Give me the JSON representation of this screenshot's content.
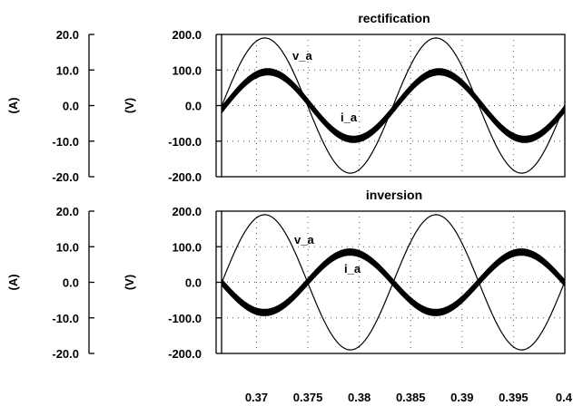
{
  "chart_data": [
    {
      "type": "line",
      "title": "rectification",
      "x_range": [
        0.3666,
        0.4
      ],
      "left_axis": {
        "unit": "(A)",
        "ylim": [
          -20,
          20
        ],
        "ticks": [
          "20.0",
          "10.0",
          "0.0",
          "-10.0",
          "-20.0"
        ]
      },
      "right_axis": {
        "unit": "(V)",
        "ylim": [
          -200,
          200
        ],
        "ticks": [
          "200.0",
          "100.0",
          "0.0",
          "-100.0",
          "-200.0"
        ]
      },
      "grid": true,
      "series": [
        {
          "name": "v_a",
          "axis": "right",
          "waveform": "sine",
          "amplitude": 190,
          "frequency_hz": 60,
          "peak_at": 0.3708
        },
        {
          "name": "i_a",
          "axis": "left",
          "waveform": "sine",
          "amplitude": 9.5,
          "ripple": 0.9,
          "frequency_hz": 60,
          "peak_at": 0.3711
        }
      ]
    },
    {
      "type": "line",
      "title": "inversion",
      "x_range": [
        0.3666,
        0.4
      ],
      "left_axis": {
        "unit": "(A)",
        "ylim": [
          -20,
          20
        ],
        "ticks": [
          "20.0",
          "10.0",
          "0.0",
          "-10.0",
          "-20.0"
        ]
      },
      "right_axis": {
        "unit": "(V)",
        "ylim": [
          -200,
          200
        ],
        "ticks": [
          "200.0",
          "100.0",
          "0.0",
          "-100.0",
          "-200.0"
        ]
      },
      "grid": true,
      "series": [
        {
          "name": "v_a",
          "axis": "right",
          "waveform": "sine",
          "amplitude": 190,
          "frequency_hz": 60,
          "peak_at": 0.3708
        },
        {
          "name": "i_a",
          "axis": "left",
          "waveform": "sine",
          "amplitude": 8.5,
          "ripple": 0.9,
          "frequency_hz": 60,
          "peak_at": 0.3791
        }
      ]
    }
  ],
  "x_axis": {
    "ticks": [
      0.37,
      0.375,
      0.38,
      0.385,
      0.39,
      0.395,
      0.4
    ],
    "tick_labels": [
      "0.37",
      "0.375",
      "0.38",
      "0.385",
      "0.39",
      "0.395",
      "0.4"
    ]
  }
}
